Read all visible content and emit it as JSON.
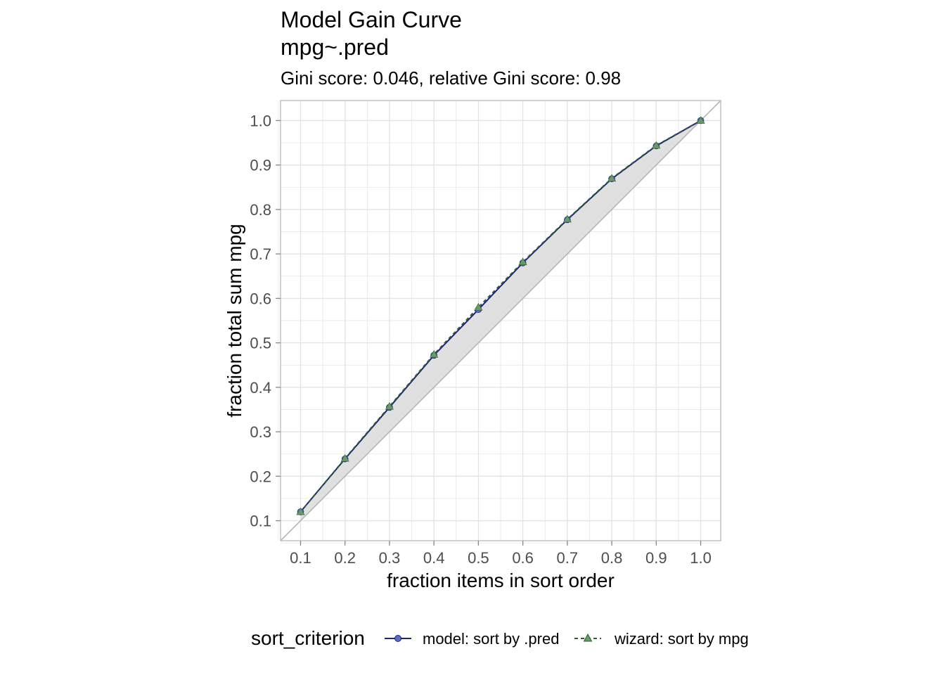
{
  "title_line1": "Model Gain Curve",
  "title_line2": "mpg~.pred",
  "subtitle": "Gini score: 0.046, relative Gini score: 0.98",
  "legend_title": "sort_criterion",
  "colors": {
    "model": "#1a237e",
    "model_point": "#5c6bc0",
    "wizard": "#2e5e2e",
    "wizard_point": "#6a9a6a",
    "shade": "#e0e0e0",
    "diagonal": "#b5b5b5",
    "grid": "#e3e3e3",
    "panel_border": "#b8b8b8"
  },
  "chart_data": {
    "type": "line",
    "xlabel": "fraction items in sort order",
    "ylabel": "fraction total sum mpg",
    "xlim": [
      0.055,
      1.045
    ],
    "ylim": [
      0.055,
      1.045
    ],
    "x_ticks": [
      "0.1",
      "0.2",
      "0.3",
      "0.4",
      "0.5",
      "0.6",
      "0.7",
      "0.8",
      "0.9",
      "1.0"
    ],
    "y_ticks": [
      "0.1",
      "0.2",
      "0.3",
      "0.4",
      "0.5",
      "0.6",
      "0.7",
      "0.8",
      "0.9",
      "1.0"
    ],
    "grid": true,
    "legend_position": "bottom",
    "reference_line": "diagonal",
    "x": [
      0.1,
      0.2,
      0.3,
      0.4,
      0.5,
      0.6,
      0.7,
      0.8,
      0.9,
      1.0
    ],
    "series": [
      {
        "name": "model: sort by .pred",
        "line": "solid",
        "marker": "circle",
        "values": [
          0.12,
          0.239,
          0.355,
          0.472,
          0.575,
          0.68,
          0.777,
          0.869,
          0.943,
          1.0
        ]
      },
      {
        "name": "wizard: sort by mpg",
        "line": "dashed",
        "marker": "triangle",
        "values": [
          0.12,
          0.24,
          0.357,
          0.474,
          0.58,
          0.682,
          0.778,
          0.87,
          0.944,
          1.0
        ]
      }
    ]
  }
}
